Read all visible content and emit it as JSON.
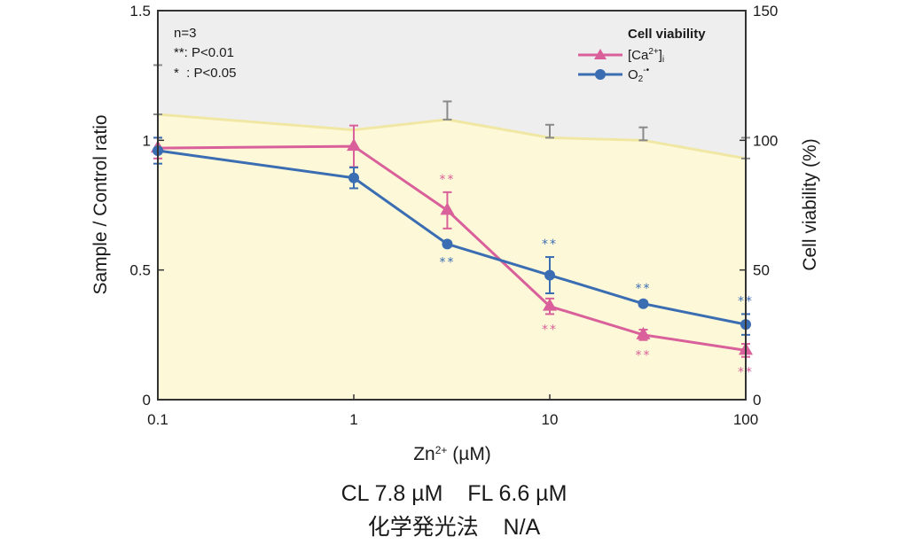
{
  "chart_data": {
    "type": "line",
    "title": "",
    "xlabel": "Zn2+ (µM)",
    "xlabel_base": "Zn",
    "xlabel_sup": "2+",
    "xlabel_unit": " (µM)",
    "xscale": "log",
    "xlim": [
      0.1,
      100
    ],
    "x_ticks": [
      0.1,
      1,
      10,
      100
    ],
    "x_tick_labels": [
      "0.1",
      "1",
      "10",
      "100"
    ],
    "ylabel_left": "Sample / Control ratio",
    "ylim_left": [
      0,
      1.5
    ],
    "y_ticks_left": [
      0,
      0.5,
      1,
      1.5
    ],
    "y_tick_labels_left": [
      "0",
      "0.5",
      "1",
      "1.5"
    ],
    "ylabel_right": "Cell viability (%)",
    "ylim_right": [
      0,
      150
    ],
    "y_ticks_right": [
      0,
      50,
      100,
      150
    ],
    "y_tick_labels_right": [
      "0",
      "50",
      "100",
      "150"
    ],
    "grid": false,
    "x": [
      0.1,
      1,
      3,
      10,
      30,
      100
    ],
    "series": [
      {
        "name": "[Ca2+]i",
        "axis": "left",
        "marker": "triangle",
        "color": "#d9609a",
        "values": [
          0.97,
          0.977,
          0.73,
          0.36,
          0.25,
          0.19
        ],
        "errors": [
          0.04,
          0.08,
          0.07,
          0.03,
          0.02,
          0.025
        ],
        "significance": [
          "",
          "",
          "**",
          "**",
          "**",
          "**"
        ],
        "significance_position": [
          "",
          "",
          "above",
          "below",
          "below",
          "below"
        ]
      },
      {
        "name": "O2-•",
        "axis": "left",
        "marker": "circle",
        "color": "#3b6db3",
        "values": [
          0.96,
          0.855,
          0.6,
          0.48,
          0.37,
          0.29
        ],
        "errors": [
          0.05,
          0.04,
          0.01,
          0.07,
          0.01,
          0.04
        ],
        "significance": [
          "",
          "",
          "**",
          "**",
          "**",
          "**"
        ],
        "significance_position": [
          "",
          "",
          "below",
          "above",
          "above",
          "above"
        ]
      },
      {
        "name": "Cell viability",
        "axis": "right",
        "type": "area",
        "color": "#f1e7a4",
        "fill": "#fdf9d8",
        "values": [
          110,
          104,
          108,
          101,
          100,
          93
        ],
        "errors": [
          19,
          0,
          7,
          5,
          5,
          8
        ]
      }
    ],
    "legend": {
      "placement": "top-right",
      "title": "Cell viability",
      "entries": [
        {
          "label_main": "[Ca",
          "label_sup": "2+",
          "label_close": "]",
          "label_sub": "i",
          "marker": "triangle",
          "color": "#d9609a"
        },
        {
          "label_main": "O",
          "label_sub": "2",
          "label_sup": "-•",
          "marker": "circle",
          "color": "#3b6db3"
        }
      ]
    },
    "annotations": [
      "n=3",
      "**: P<0.01",
      "*  : P<0.05"
    ],
    "background_color": "#eeeeee"
  },
  "caption": {
    "line1": "CL 7.8 µM    FL 6.6 µM",
    "line2": "化学発光法    N/A"
  }
}
